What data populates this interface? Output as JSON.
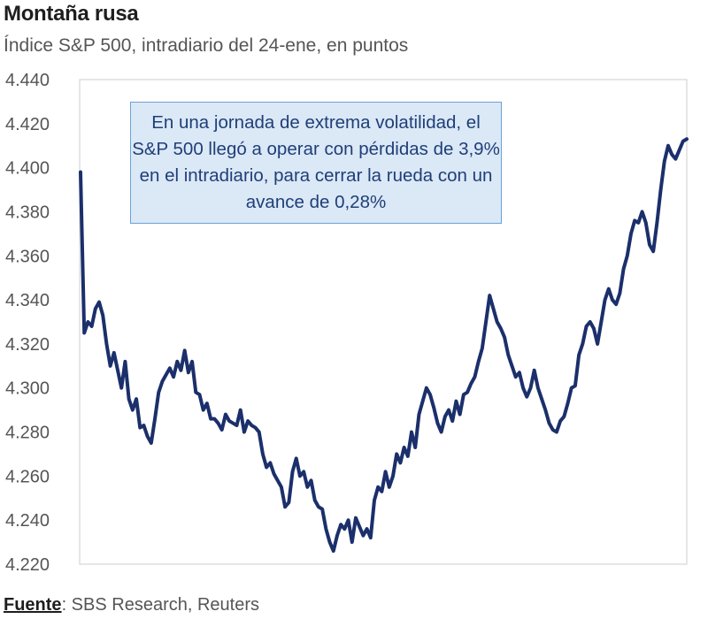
{
  "header": {
    "title": "Montaña rusa",
    "subtitle": "Índice S&P 500, intradiario del 24-ene, en puntos"
  },
  "footer": {
    "source_label": "Fuente",
    "source_text": ": SBS Research, Reuters"
  },
  "colors": {
    "line": "#1b2f6b",
    "annotation_bg": "#dbe8f6",
    "annotation_border": "#6aa2d8",
    "annotation_text": "#1f3f78"
  },
  "chart_data": {
    "type": "line",
    "title": "Montaña rusa",
    "subtitle": "Índice S&P 500, intradiario del 24-ene, en puntos",
    "xlabel": "",
    "ylabel": "",
    "ylim": [
      4220,
      4440
    ],
    "yticks": [
      4440,
      4420,
      4400,
      4380,
      4360,
      4340,
      4320,
      4300,
      4280,
      4260,
      4240,
      4220
    ],
    "ytick_labels": [
      "4.440",
      "4.420",
      "4.400",
      "4.380",
      "4.360",
      "4.340",
      "4.320",
      "4.300",
      "4.280",
      "4.260",
      "4.240",
      "4.220"
    ],
    "grid": false,
    "annotation": "En una jornada de extrema volatilidad, el S&P 500 llegó a operar con pérdidas de 3,9% en el intradiario, para cerrar la rueda con un avance de 0,28%",
    "series": [
      {
        "name": "S&P 500",
        "values": [
          4398,
          4325,
          4330,
          4328,
          4336,
          4339,
          4333,
          4320,
          4310,
          4316,
          4308,
          4300,
          4312,
          4295,
          4290,
          4295,
          4282,
          4283,
          4278,
          4275,
          4286,
          4298,
          4303,
          4306,
          4309,
          4305,
          4312,
          4308,
          4317,
          4307,
          4312,
          4298,
          4297,
          4290,
          4293,
          4286,
          4286,
          4284,
          4281,
          4288,
          4285,
          4284,
          4283,
          4290,
          4280,
          4285,
          4283,
          4282,
          4280,
          4270,
          4264,
          4266,
          4261,
          4258,
          4255,
          4246,
          4248,
          4262,
          4268,
          4260,
          4262,
          4255,
          4258,
          4249,
          4246,
          4245,
          4236,
          4230,
          4226,
          4233,
          4238,
          4236,
          4240,
          4230,
          4241,
          4237,
          4233,
          4236,
          4232,
          4249,
          4255,
          4253,
          4262,
          4255,
          4260,
          4270,
          4266,
          4273,
          4269,
          4280,
          4273,
          4288,
          4294,
          4300,
          4297,
          4291,
          4284,
          4280,
          4287,
          4290,
          4285,
          4294,
          4288,
          4297,
          4298,
          4302,
          4305,
          4312,
          4318,
          4330,
          4342,
          4336,
          4330,
          4327,
          4323,
          4315,
          4310,
          4305,
          4307,
          4300,
          4296,
          4300,
          4308,
          4300,
          4295,
          4290,
          4284,
          4281,
          4280,
          4285,
          4287,
          4293,
          4300,
          4301,
          4315,
          4320,
          4328,
          4330,
          4327,
          4320,
          4330,
          4340,
          4345,
          4340,
          4338,
          4343,
          4354,
          4360,
          4370,
          4376,
          4375,
          4380,
          4375,
          4365,
          4362,
          4375,
          4390,
          4403,
          4410,
          4406,
          4404,
          4408,
          4412,
          4413
        ]
      }
    ]
  }
}
